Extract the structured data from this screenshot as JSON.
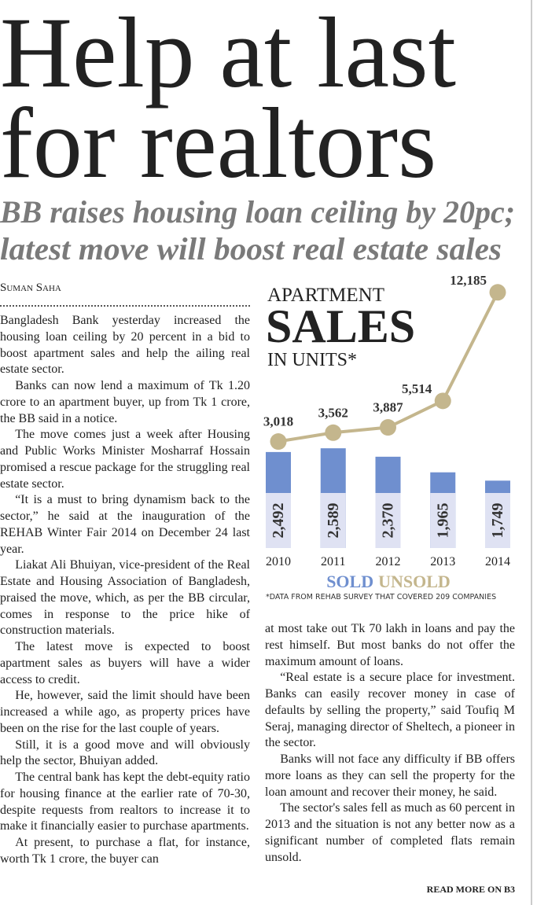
{
  "headline": [
    "Help at last",
    "for realtors"
  ],
  "subheadline": [
    "BB raises housing loan ceiling by 20pc;",
    "latest move will boost real estate sales"
  ],
  "byline": "Suman Saha",
  "article": {
    "left_column": [
      "Bangladesh Bank yesterday increased the housing loan ceiling by 20 percent in a bid to boost apartment sales and help the ailing real estate sector.",
      "Banks can now lend a maximum of Tk 1.20 crore to an apartment buyer, up from Tk 1 crore, the BB said in a notice.",
      "The move comes just a week after Housing and Public Works Minister Mosharraf Hossain promised a rescue package for the struggling real estate sector.",
      "“It is a must to bring dynamism back to the sector,” he said at the inauguration of the REHAB Winter Fair 2014 on December 24 last year.",
      "Liakat Ali Bhuiyan, vice-president of the Real Estate and Housing Association of Bangladesh, praised the move, which, as per the BB circular, comes in response to the price hike of construction materials.",
      "The latest move is expected to boost apartment sales as buyers will have a wider access to credit.",
      "He, however, said the limit should have been increased a while ago, as property prices have been on the rise for the last couple of years.",
      "Still, it is a good move and will obviously help the sector, Bhuiyan added.",
      "The central bank has kept the debt-equity ratio for housing finance at the earlier rate of 70-30, despite requests from realtors to increase it to make it financially easier to purchase apartments.",
      "At present, to purchase a flat, for instance, worth Tk 1 crore, the buyer can"
    ],
    "right_column": [
      "at most take out Tk 70 lakh in loans and pay the rest himself. But most banks do not offer the maximum amount of loans.",
      "“Real estate is a secure place for investment. Banks can easily recover money in case of defaults by selling the property,” said Toufiq M Seraj, managing director of Sheltech, a pioneer in the sector.",
      "Banks will not face any difficulty if BB offers more loans as they can sell the property for the loan amount and recover their money, he said.",
      "The sector's sales fell as much as 60 percent in 2013 and the situation is not any better now as a significant number of completed flats remain unsold."
    ],
    "read_more": "READ MORE ON B3"
  },
  "chart_data": {
    "type": "bar",
    "title": [
      "APARTMENT",
      "SALES",
      "IN UNITS*"
    ],
    "categories": [
      "2010",
      "2011",
      "2012",
      "2013",
      "2014"
    ],
    "series": [
      {
        "name": "SOLD",
        "type": "bar",
        "color": "#6f8fcf",
        "values": [
          2492,
          2589,
          2370,
          1965,
          1749
        ],
        "value_labels": [
          "2,492",
          "2,589",
          "2,370",
          "1,965",
          "1,749"
        ]
      },
      {
        "name": "UNSOLD",
        "type": "line",
        "color": "#c4b68d",
        "values": [
          3018,
          3562,
          3887,
          5514,
          12185
        ],
        "value_labels": [
          "3,018",
          "3,562",
          "3,887",
          "5,514",
          "12,185"
        ]
      }
    ],
    "note": "*DATA FROM REHAB SURVEY THAT COVERED 209 COMPANIES"
  }
}
